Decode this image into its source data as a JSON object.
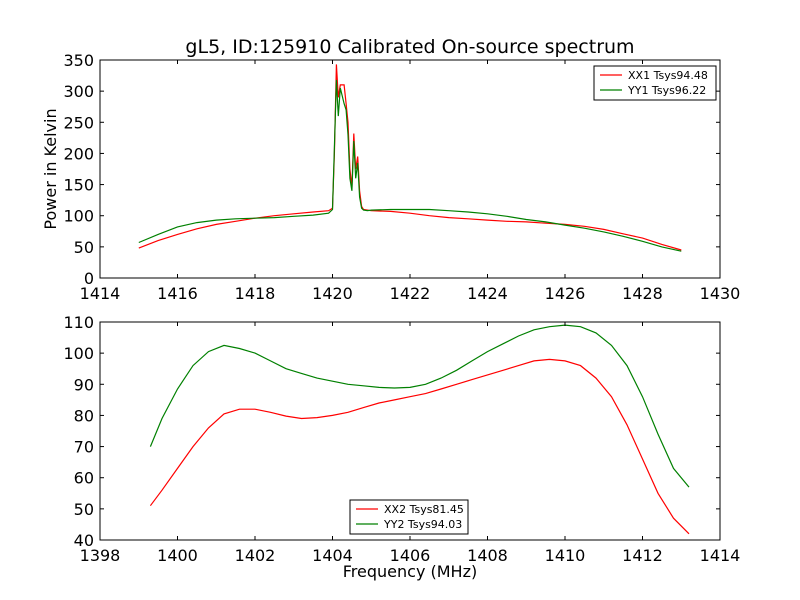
{
  "chart_data": [
    {
      "type": "line",
      "title": "gL5, ID:125910 Calibrated On-source spectrum",
      "xlabel": "",
      "ylabel": "Power in Kelvin",
      "xlim": [
        1414,
        1430
      ],
      "ylim": [
        0,
        350
      ],
      "xticks": [
        1414,
        1416,
        1418,
        1420,
        1422,
        1424,
        1426,
        1428,
        1430
      ],
      "yticks": [
        0,
        50,
        100,
        150,
        200,
        250,
        300,
        350
      ],
      "legend_position": "top-right",
      "series": [
        {
          "name": "XX1 Tsys94.48",
          "color": "#ff0000",
          "x": [
            1415.0,
            1415.5,
            1416.0,
            1416.5,
            1417.0,
            1417.5,
            1418.0,
            1418.5,
            1419.0,
            1419.5,
            1419.9,
            1420.0,
            1420.05,
            1420.1,
            1420.15,
            1420.2,
            1420.3,
            1420.35,
            1420.4,
            1420.45,
            1420.5,
            1420.55,
            1420.6,
            1420.65,
            1420.7,
            1420.75,
            1420.8,
            1420.9,
            1421.0,
            1421.5,
            1422.0,
            1422.5,
            1423.0,
            1423.5,
            1424.0,
            1424.5,
            1425.0,
            1425.5,
            1426.0,
            1426.5,
            1427.0,
            1427.5,
            1428.0,
            1428.5,
            1429.0
          ],
          "y": [
            48,
            60,
            70,
            79,
            86,
            91,
            96,
            100,
            103,
            106,
            108,
            112,
            200,
            343,
            290,
            310,
            310,
            280,
            250,
            175,
            145,
            232,
            175,
            195,
            140,
            115,
            110,
            109,
            108,
            107,
            104,
            100,
            97,
            95,
            93,
            91,
            90,
            88,
            86,
            83,
            78,
            71,
            64,
            54,
            45
          ]
        },
        {
          "name": "YY1 Tsys96.22",
          "color": "#008000",
          "x": [
            1415.0,
            1415.5,
            1416.0,
            1416.5,
            1417.0,
            1417.5,
            1418.0,
            1418.5,
            1419.0,
            1419.5,
            1419.9,
            1420.0,
            1420.05,
            1420.1,
            1420.15,
            1420.2,
            1420.3,
            1420.35,
            1420.4,
            1420.45,
            1420.5,
            1420.55,
            1420.6,
            1420.65,
            1420.7,
            1420.75,
            1420.8,
            1420.9,
            1421.0,
            1421.5,
            1422.0,
            1422.5,
            1423.0,
            1423.5,
            1424.0,
            1424.5,
            1425.0,
            1425.5,
            1426.0,
            1426.5,
            1427.0,
            1427.5,
            1428.0,
            1428.5,
            1429.0
          ],
          "y": [
            57,
            70,
            82,
            89,
            93,
            95,
            96,
            97,
            99,
            101,
            104,
            110,
            210,
            318,
            260,
            305,
            280,
            270,
            230,
            160,
            140,
            220,
            160,
            185,
            130,
            112,
            109,
            108,
            109,
            110,
            110,
            110,
            108,
            106,
            103,
            99,
            94,
            90,
            85,
            80,
            74,
            67,
            59,
            50,
            43
          ]
        }
      ]
    },
    {
      "type": "line",
      "title": "",
      "xlabel": "Frequency (MHz)",
      "ylabel": "",
      "xlim": [
        1398,
        1414
      ],
      "ylim": [
        40,
        110
      ],
      "xticks": [
        1398,
        1400,
        1402,
        1404,
        1406,
        1408,
        1410,
        1412,
        1414
      ],
      "yticks": [
        40,
        50,
        60,
        70,
        80,
        90,
        100,
        110
      ],
      "legend_position": "bottom-center",
      "series": [
        {
          "name": "XX2 Tsys81.45",
          "color": "#ff0000",
          "x": [
            1399.3,
            1399.6,
            1400.0,
            1400.4,
            1400.8,
            1401.2,
            1401.6,
            1402.0,
            1402.4,
            1402.8,
            1403.2,
            1403.6,
            1404.0,
            1404.4,
            1404.8,
            1405.2,
            1405.6,
            1406.0,
            1406.4,
            1406.8,
            1407.2,
            1407.6,
            1408.0,
            1408.4,
            1408.8,
            1409.2,
            1409.6,
            1410.0,
            1410.4,
            1410.8,
            1411.2,
            1411.6,
            1412.0,
            1412.4,
            1412.8,
            1413.2
          ],
          "y": [
            51,
            56,
            63,
            70,
            76,
            80.5,
            82,
            82,
            81,
            79.8,
            79,
            79.3,
            80,
            81,
            82.5,
            84,
            85,
            86,
            87,
            88.5,
            90,
            91.5,
            93,
            94.5,
            96,
            97.5,
            98,
            97.5,
            96,
            92,
            86,
            77,
            66,
            55,
            47,
            42
          ]
        },
        {
          "name": "YY2 Tsys94.03",
          "color": "#008000",
          "x": [
            1399.3,
            1399.6,
            1400.0,
            1400.4,
            1400.8,
            1401.2,
            1401.6,
            1402.0,
            1402.4,
            1402.8,
            1403.2,
            1403.6,
            1404.0,
            1404.4,
            1404.8,
            1405.2,
            1405.6,
            1406.0,
            1406.4,
            1406.8,
            1407.2,
            1407.6,
            1408.0,
            1408.4,
            1408.8,
            1409.2,
            1409.6,
            1410.0,
            1410.4,
            1410.8,
            1411.2,
            1411.6,
            1412.0,
            1412.4,
            1412.8,
            1413.2
          ],
          "y": [
            70,
            79,
            88.5,
            96,
            100.5,
            102.5,
            101.5,
            100,
            97.5,
            95,
            93.5,
            92,
            91,
            90,
            89.5,
            89,
            88.8,
            89,
            90,
            92,
            94.5,
            97.5,
            100.5,
            103,
            105.5,
            107.5,
            108.5,
            109,
            108.5,
            106.5,
            102.5,
            96,
            86,
            74,
            63,
            57
          ]
        }
      ]
    }
  ]
}
